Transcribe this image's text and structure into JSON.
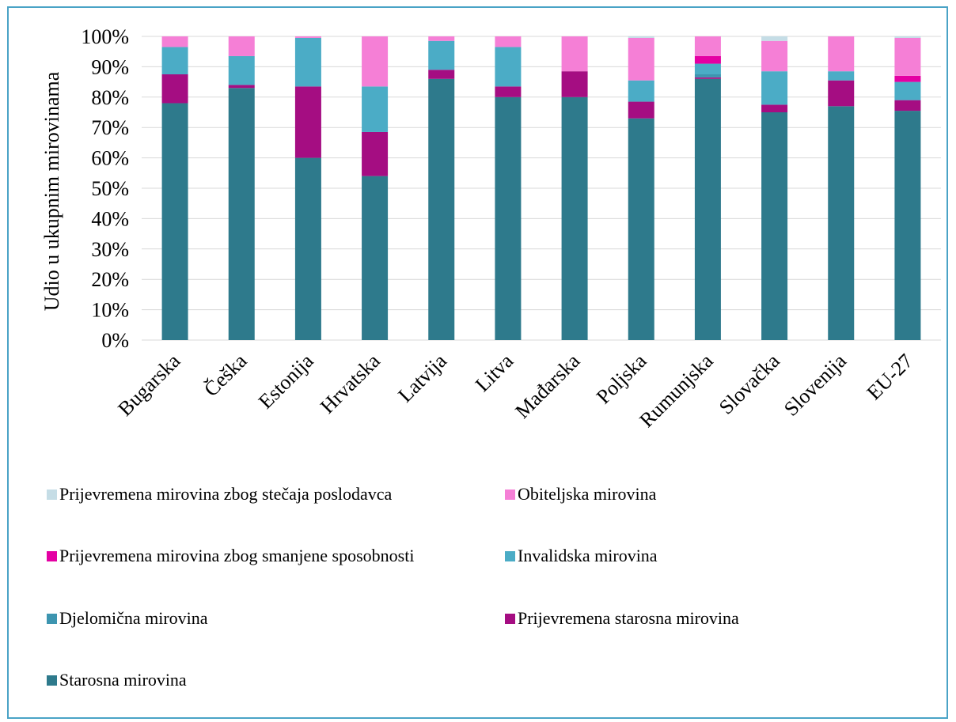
{
  "chart_data": {
    "type": "bar",
    "stacked": true,
    "percent_stacked": true,
    "categories": [
      "Bugarska",
      "Češka",
      "Estonija",
      "Hrvatska",
      "Latvija",
      "Litva",
      "Mađarska",
      "Poljska",
      "Rumunjska",
      "Slovačka",
      "Slovenija",
      "EU-27"
    ],
    "ylabel": "Udio u ukupnim mirovinama",
    "xlabel": "",
    "ylim": [
      0,
      100
    ],
    "yticks": [
      "0%",
      "10%",
      "20%",
      "30%",
      "40%",
      "50%",
      "60%",
      "70%",
      "80%",
      "90%",
      "100%"
    ],
    "grid": true,
    "legend_position": "bottom",
    "series": [
      {
        "name": "Starosna mirovina",
        "color": "#2e7a8c",
        "values": [
          78,
          83,
          60,
          54,
          86,
          80,
          80,
          73,
          86,
          75,
          77,
          75.5
        ]
      },
      {
        "name": "Prijevremena starosna mirovina",
        "color": "#a50d82",
        "values": [
          9.5,
          1,
          23.5,
          14.5,
          3,
          3.5,
          8.5,
          5.5,
          0.5,
          2.5,
          8.5,
          3.5
        ]
      },
      {
        "name": "Djelomična mirovina",
        "color": "#3d95b0",
        "values": [
          0,
          0,
          0,
          0,
          0,
          0,
          0,
          0,
          1,
          0,
          0,
          0
        ]
      },
      {
        "name": "Invalidska mirovina",
        "color": "#4bacc6",
        "values": [
          9,
          9.5,
          16,
          15,
          9.5,
          13,
          0,
          7,
          3.5,
          11,
          3,
          6
        ]
      },
      {
        "name": "Prijevremena mirovina zbog smanjene sposobnosti",
        "color": "#e400a3",
        "values": [
          0,
          0,
          0,
          0,
          0,
          0,
          0,
          0,
          2.5,
          0,
          0,
          2
        ]
      },
      {
        "name": "Obiteljska mirovina",
        "color": "#f57fd6",
        "values": [
          3.5,
          6.5,
          0.5,
          16.5,
          1.5,
          3.5,
          11.5,
          14,
          6.5,
          10,
          11.5,
          12.5
        ]
      },
      {
        "name": "Prijevremena mirovina zbog stečaja poslodavca",
        "color": "#c5dde6",
        "values": [
          0,
          0,
          0,
          0,
          0,
          0,
          0,
          0.5,
          0,
          1.5,
          0,
          0.5
        ]
      }
    ],
    "legend": [
      {
        "name": "Prijevremena mirovina zbog stečaja poslodavca",
        "color": "#c5dde6"
      },
      {
        "name": "Obiteljska mirovina",
        "color": "#f57fd6"
      },
      {
        "name": "Prijevremena mirovina zbog smanjene sposobnosti",
        "color": "#e400a3"
      },
      {
        "name": "Invalidska mirovina",
        "color": "#4bacc6"
      },
      {
        "name": "Djelomična mirovina",
        "color": "#3d95b0"
      },
      {
        "name": "Prijevremena starosna mirovina",
        "color": "#a50d82"
      },
      {
        "name": "Starosna mirovina",
        "color": "#2e7a8c"
      }
    ]
  }
}
